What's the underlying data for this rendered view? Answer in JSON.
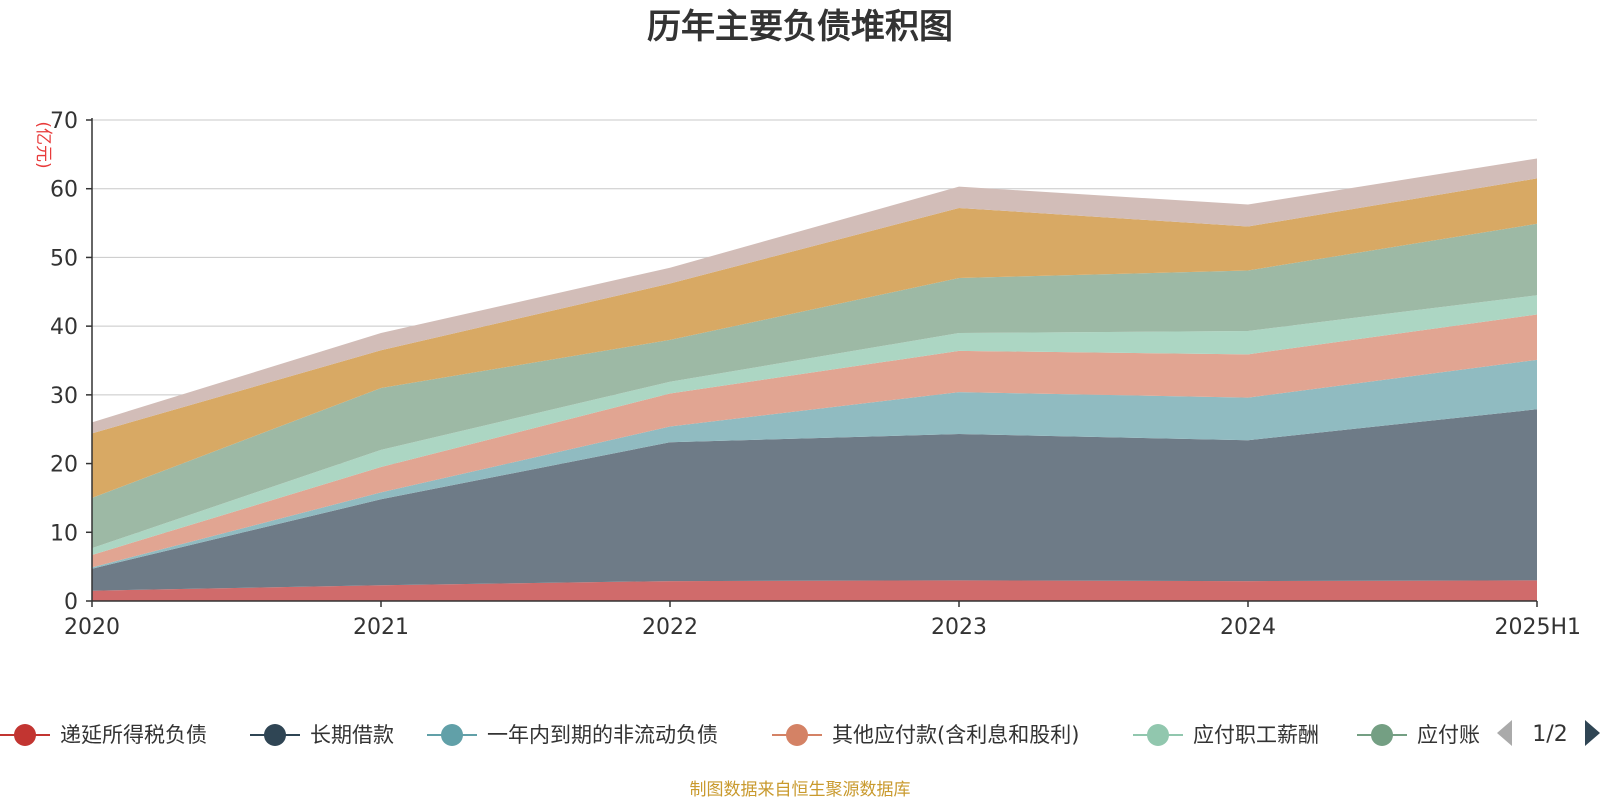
{
  "chart_data": {
    "type": "area",
    "stacked": true,
    "title": "历年主要负债堆积图",
    "ylabel": "(亿元)",
    "ylim": [
      0,
      70
    ],
    "yticks": [
      "0",
      "10",
      "20",
      "30",
      "40",
      "50",
      "60",
      "70"
    ],
    "categories": [
      "2020",
      "2021",
      "2022",
      "2023",
      "2024",
      "2025H1"
    ],
    "grid": true,
    "series": [
      {
        "name": "递延所得税负债",
        "color": "#d06b6b",
        "legend_color": "#c23531",
        "values": [
          1.5,
          2.3,
          2.9,
          3.0,
          2.9,
          3.0
        ]
      },
      {
        "name": "长期借款",
        "color": "#6e7b87",
        "legend_color": "#2f4554",
        "values": [
          3.2,
          12.5,
          20.2,
          21.3,
          20.5,
          24.9
        ]
      },
      {
        "name": "一年内到期的非流动负债",
        "color": "#90bbc1",
        "legend_color": "#61a0a8",
        "values": [
          0.2,
          1.0,
          2.3,
          6.1,
          6.2,
          7.2
        ]
      },
      {
        "name": "其他应付款(含利息和股利)",
        "color": "#e1a592",
        "legend_color": "#d48265",
        "values": [
          1.8,
          3.7,
          4.8,
          6.0,
          6.3,
          6.6
        ]
      },
      {
        "name": "应付职工薪酬",
        "color": "#acd6c3",
        "legend_color": "#91c7ae",
        "values": [
          1.0,
          2.5,
          1.7,
          2.6,
          3.4,
          2.8
        ]
      },
      {
        "name": "应付账款",
        "color": "#9db9a5",
        "legend_color": "#749f83",
        "values": [
          7.3,
          9.0,
          6.1,
          8.0,
          8.8,
          10.4
        ]
      },
      {
        "name": "",
        "color": "#d8a964",
        "values": [
          9.4,
          5.5,
          8.2,
          10.2,
          6.4,
          6.6
        ]
      },
      {
        "name": "",
        "color": "#d2bdb8",
        "values": [
          1.6,
          2.5,
          2.3,
          3.1,
          3.2,
          2.9
        ]
      }
    ],
    "legend": {
      "position": "bottom",
      "visible_labels": [
        "递延所得税负债",
        "长期借款",
        "一年内到期的非流动负债",
        "其他应付款(含利息和股利)",
        "应付职工薪酬",
        "应付账"
      ],
      "page": "1/2"
    },
    "source": "制图数据来自恒生聚源数据库"
  }
}
